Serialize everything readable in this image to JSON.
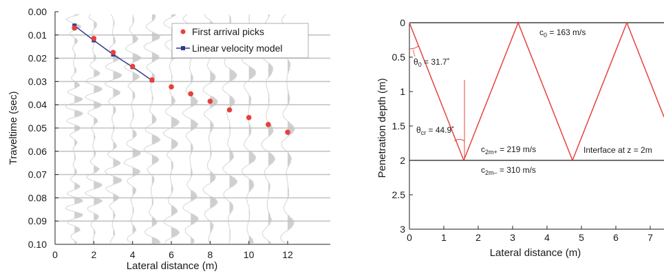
{
  "chart_data": [
    {
      "type": "scatter",
      "xlabel": "Lateral distance (m)",
      "ylabel": "Traveltime (sec)",
      "xlim": [
        0,
        14.2
      ],
      "ylim": [
        0.1,
        0.0
      ],
      "xticks": [
        0,
        2,
        4,
        6,
        8,
        10,
        12
      ],
      "yticks": [
        "0.00",
        "0.01",
        "0.02",
        "0.03",
        "0.04",
        "0.05",
        "0.06",
        "0.07",
        "0.08",
        "0.09",
        "0.10"
      ],
      "legend_position": "top-right",
      "series": [
        {
          "name": "First arrival picks",
          "color": "#e8403a",
          "x": [
            1,
            2,
            3,
            4,
            5,
            6,
            7,
            8,
            9,
            10,
            11,
            12
          ],
          "y": [
            0.007,
            0.0115,
            0.0175,
            0.0235,
            0.0293,
            0.0323,
            0.0353,
            0.0385,
            0.0422,
            0.0455,
            0.0485,
            0.0518
          ]
        },
        {
          "name": "Linear velocity model",
          "color": "#2f3b8c",
          "x": [
            1,
            2,
            3,
            4,
            5
          ],
          "y": [
            0.006,
            0.0123,
            0.0184,
            0.0238,
            0.0295
          ]
        }
      ],
      "background": "seismic wiggle traces, one per trace position 1–12 m"
    },
    {
      "type": "line",
      "xlabel": "Lateral distance (m)",
      "ylabel": "Penetration depth (m)",
      "xlim": [
        0,
        7.4
      ],
      "ylim": [
        3,
        0
      ],
      "xticks": [
        "0",
        "1",
        "2",
        "3",
        "4",
        "5",
        "6",
        "7"
      ],
      "yticks": [
        "0",
        "0.5",
        "1",
        "1.5",
        "2",
        "2.5",
        "3"
      ],
      "ray_color": "#e8403a",
      "ray_path": {
        "x": [
          0,
          1.58,
          3.16,
          4.74,
          6.32,
          7.4
        ],
        "y": [
          0,
          2,
          0,
          2,
          0,
          1.37
        ]
      },
      "interface_depth": 2,
      "annotations": {
        "c0": "c",
        "c0_sub": "0",
        "c0_rest": " = 163 m/s",
        "theta0": "θ",
        "theta0_sub": "0",
        "theta0_rest": " = 31.7˚",
        "thetacr": "θ",
        "thetacr_sub": "cr",
        "thetacr_rest": " = 44.9˚",
        "c2mplus": "c",
        "c2mplus_sub": "2m+",
        "c2mplus_rest": " = 219 m/s",
        "c2mminus": "c",
        "c2mminus_sub": "2m–",
        "c2mminus_rest": " = 310 m/s",
        "interface": "Interface at z = 2m"
      }
    }
  ]
}
